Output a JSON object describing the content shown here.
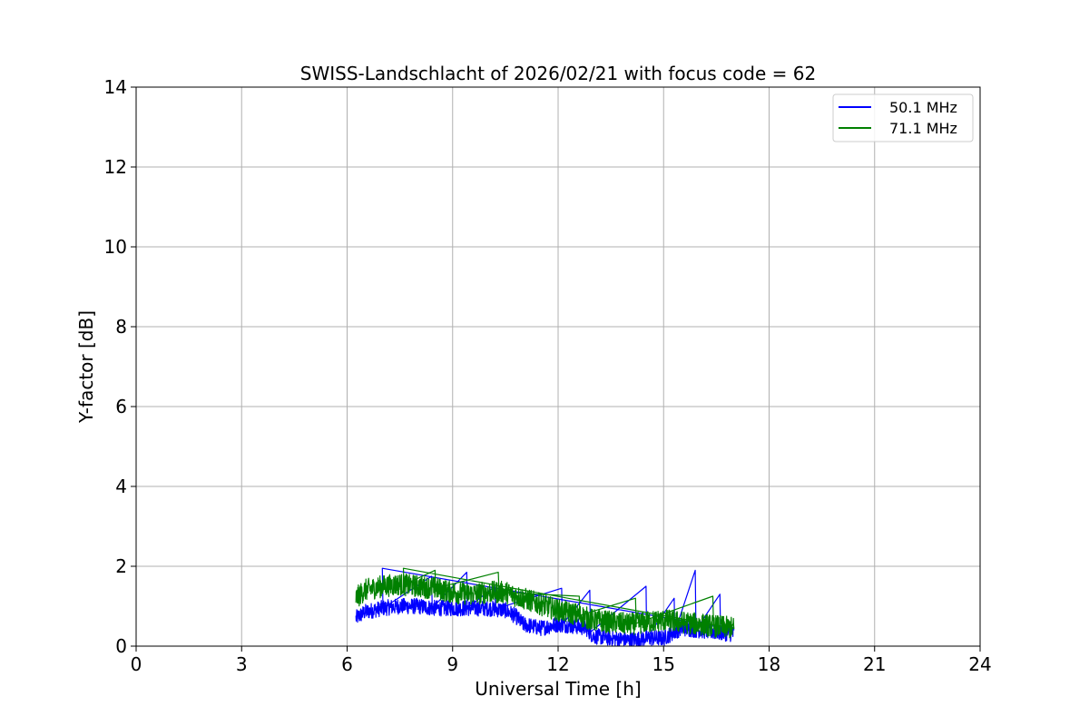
{
  "chart_data": {
    "type": "line",
    "title": "SWISS-Landschlacht of 2026/02/21 with focus code = 62",
    "xlabel": "Universal Time [h]",
    "ylabel": "Y-factor [dB]",
    "xlim": [
      0,
      24
    ],
    "ylim": [
      0,
      14
    ],
    "xticks": [
      0,
      3,
      6,
      9,
      12,
      15,
      18,
      21,
      24
    ],
    "yticks": [
      0,
      2,
      4,
      6,
      8,
      10,
      12,
      14
    ],
    "grid": true,
    "legend": "top-right",
    "series": [
      {
        "name": "50.1 MHz",
        "color": "#0000ff",
        "x": [
          6.25,
          6.5,
          7.0,
          7.5,
          8.0,
          8.5,
          9.0,
          9.5,
          10.0,
          10.5,
          10.8,
          11.0,
          11.5,
          12.0,
          12.5,
          12.8,
          13.0,
          13.5,
          14.0,
          14.5,
          15.0,
          15.5,
          16.0,
          16.5,
          17.0
        ],
        "values": [
          0.7,
          0.85,
          0.95,
          1.0,
          1.0,
          0.95,
          0.95,
          0.95,
          0.95,
          0.9,
          0.75,
          0.55,
          0.45,
          0.55,
          0.5,
          0.45,
          0.25,
          0.2,
          0.15,
          0.2,
          0.2,
          0.45,
          0.4,
          0.35,
          0.3
        ],
        "spread": 0.25,
        "spikes": [
          [
            7.0,
            1.95
          ],
          [
            8.4,
            1.75
          ],
          [
            9.4,
            1.85
          ],
          [
            10.2,
            1.5
          ],
          [
            12.1,
            1.45
          ],
          [
            12.9,
            1.4
          ],
          [
            14.5,
            1.5
          ],
          [
            15.3,
            1.2
          ],
          [
            15.9,
            1.9
          ],
          [
            16.6,
            1.3
          ]
        ]
      },
      {
        "name": "71.1 MHz",
        "color": "#008000",
        "x": [
          6.25,
          6.5,
          7.0,
          7.5,
          8.0,
          8.5,
          9.0,
          9.5,
          10.0,
          10.5,
          11.0,
          11.5,
          12.0,
          12.5,
          13.0,
          13.5,
          14.0,
          14.5,
          15.0,
          15.5,
          16.0,
          16.5,
          17.0
        ],
        "values": [
          1.2,
          1.4,
          1.5,
          1.55,
          1.5,
          1.45,
          1.35,
          1.3,
          1.35,
          1.35,
          1.2,
          1.05,
          0.9,
          0.8,
          0.65,
          0.6,
          0.55,
          0.6,
          0.65,
          0.6,
          0.55,
          0.5,
          0.45
        ],
        "spread": 0.35,
        "spikes": [
          [
            7.6,
            1.95
          ],
          [
            8.5,
            1.9
          ],
          [
            10.3,
            1.85
          ],
          [
            12.6,
            1.25
          ],
          [
            14.2,
            1.2
          ],
          [
            16.4,
            1.25
          ]
        ]
      }
    ]
  }
}
